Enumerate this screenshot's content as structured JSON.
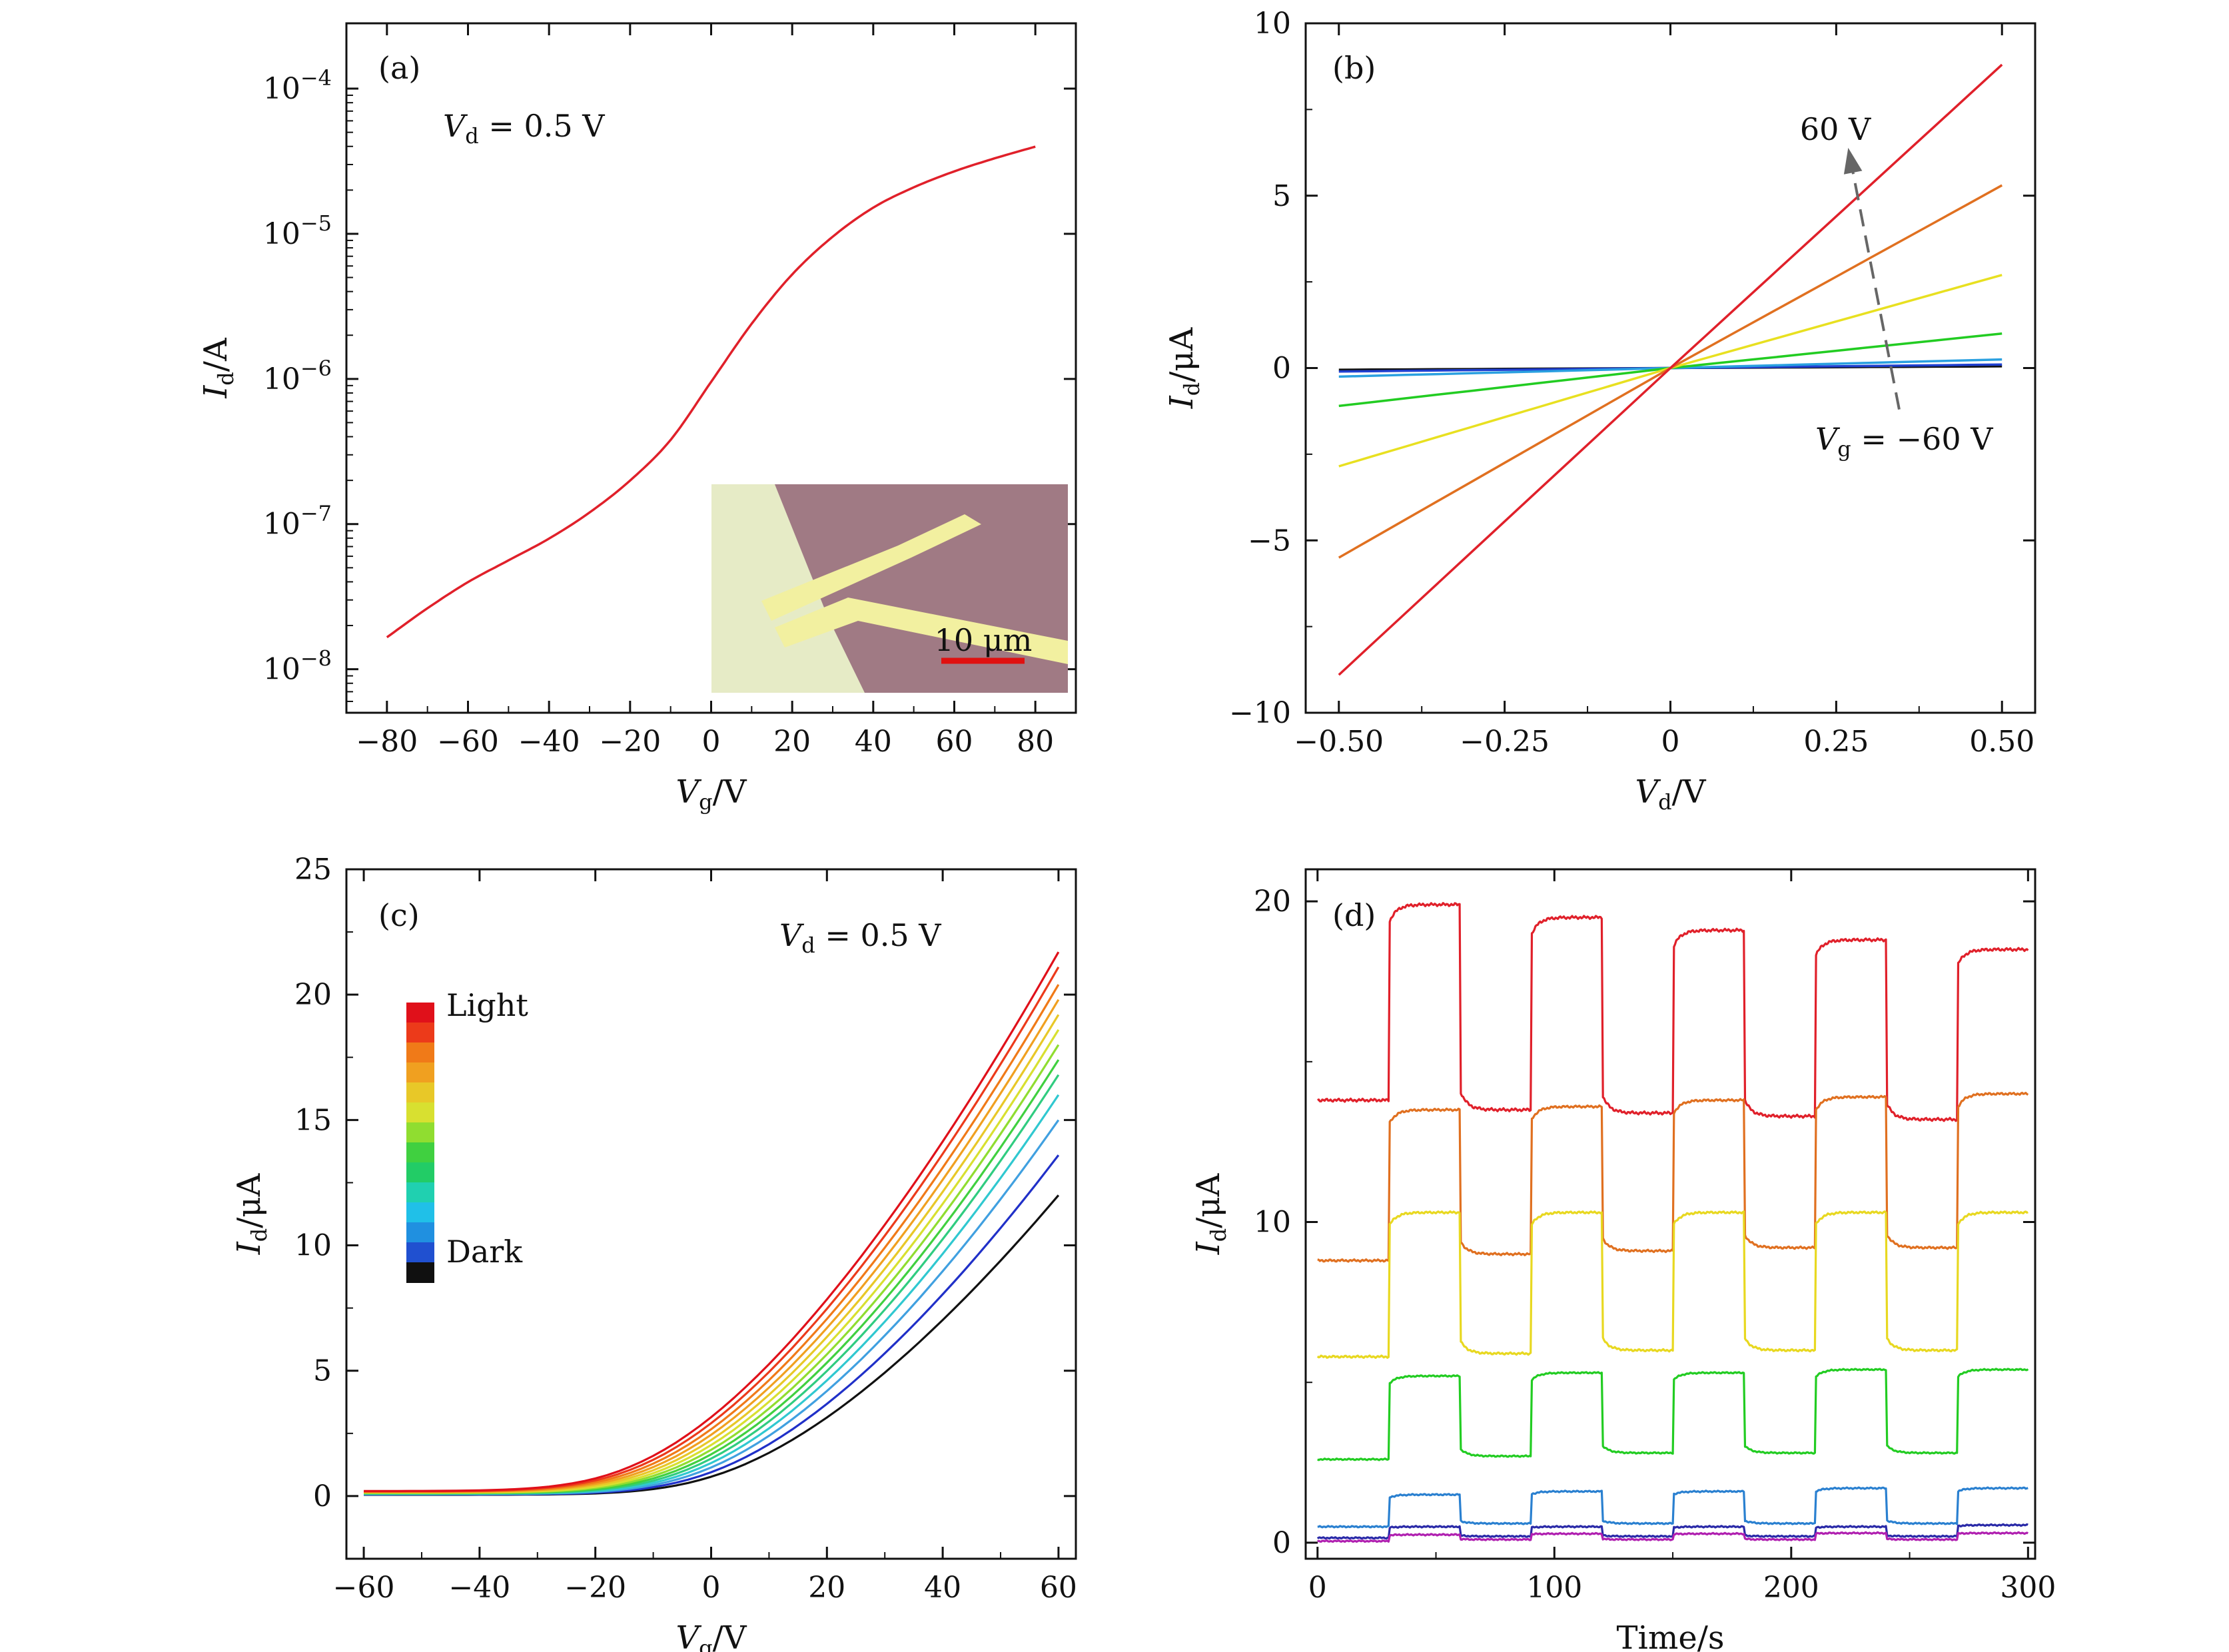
{
  "chart_data": [
    {
      "panel": "(a)",
      "type": "line",
      "yscale": "log",
      "xlabel": {
        "sym": "V",
        "sub": "g",
        "unit": "/V"
      },
      "ylabel": {
        "sym": "I",
        "sub": "d",
        "unit": "/A"
      },
      "xlim": [
        -90,
        90
      ],
      "ylim_exp": [
        -8.3,
        -3.55
      ],
      "xticks": [
        "−80",
        "−60",
        "−40",
        "−20",
        "0",
        "20",
        "40",
        "60",
        "80"
      ],
      "xtick_values": [
        -80,
        -60,
        -40,
        -20,
        0,
        20,
        40,
        60,
        80
      ],
      "yticks": [
        {
          "base": "10",
          "exp": "−4",
          "value": -4
        },
        {
          "base": "10",
          "exp": "−5",
          "value": -5
        },
        {
          "base": "10",
          "exp": "−6",
          "value": -6
        },
        {
          "base": "10",
          "exp": "−7",
          "value": -7
        },
        {
          "base": "10",
          "exp": "−8",
          "value": -8
        }
      ],
      "annotation": {
        "sym": "V",
        "sub": "d",
        "text": " = 0.5 V"
      },
      "inset_scalebar": "10 μm",
      "series": [
        {
          "color": "#e0202a",
          "x": [
            -80,
            -70,
            -60,
            -50,
            -40,
            -30,
            -20,
            -10,
            0,
            10,
            20,
            30,
            40,
            50,
            60,
            70,
            80
          ],
          "log10_y": [
            -7.78,
            -7.58,
            -7.4,
            -7.25,
            -7.1,
            -6.92,
            -6.7,
            -6.42,
            -6.02,
            -5.62,
            -5.28,
            -5.02,
            -4.82,
            -4.68,
            -4.57,
            -4.48,
            -4.4
          ]
        }
      ]
    },
    {
      "panel": "(b)",
      "type": "line",
      "xlabel": {
        "sym": "V",
        "sub": "d",
        "unit": "/V"
      },
      "ylabel": {
        "sym": "I",
        "sub": "d",
        "unit": "/μA"
      },
      "xlim": [
        -0.55,
        0.55
      ],
      "ylim": [
        -10,
        10
      ],
      "xticks": [
        "−0.50",
        "−0.25",
        "0",
        "0.25",
        "0.50"
      ],
      "xtick_values": [
        -0.5,
        -0.25,
        0,
        0.25,
        0.5
      ],
      "yticks": [
        "10",
        "5",
        "0",
        "−5",
        "−10"
      ],
      "ytick_values": [
        10,
        5,
        0,
        -5,
        -10
      ],
      "annotation_top": "60 V",
      "annotation_bottom": {
        "sym": "V",
        "sub": "g",
        "text": " = −60 V"
      },
      "series": [
        {
          "color": "#111111",
          "x": [
            -0.5,
            0.5
          ],
          "y": [
            -0.05,
            0.05
          ]
        },
        {
          "color": "#2040d0",
          "x": [
            -0.5,
            0.5
          ],
          "y": [
            -0.1,
            0.1
          ]
        },
        {
          "color": "#2aa0e0",
          "x": [
            -0.5,
            0.5
          ],
          "y": [
            -0.25,
            0.25
          ]
        },
        {
          "color": "#22cc22",
          "x": [
            -0.5,
            0.5
          ],
          "y": [
            -1.1,
            1.0
          ]
        },
        {
          "color": "#e8e020",
          "x": [
            -0.5,
            0.5
          ],
          "y": [
            -2.85,
            2.7
          ]
        },
        {
          "color": "#e07020",
          "x": [
            -0.5,
            0.5
          ],
          "y": [
            -5.5,
            5.3
          ]
        },
        {
          "color": "#e0202a",
          "x": [
            -0.5,
            0.5
          ],
          "y": [
            -8.9,
            8.8
          ]
        }
      ]
    },
    {
      "panel": "(c)",
      "type": "line",
      "xlabel": {
        "sym": "V",
        "sub": "g",
        "unit": "/V"
      },
      "ylabel": {
        "sym": "I",
        "sub": "d",
        "unit": "/μA"
      },
      "xlim": [
        -63,
        63
      ],
      "ylim": [
        -2.5,
        25
      ],
      "xticks": [
        "−60",
        "−40",
        "−20",
        "0",
        "20",
        "40",
        "60"
      ],
      "xtick_values": [
        -60,
        -40,
        -20,
        0,
        20,
        40,
        60
      ],
      "yticks": [
        "25",
        "20",
        "15",
        "10",
        "5",
        "0"
      ],
      "ytick_values": [
        25,
        20,
        15,
        10,
        5,
        0
      ],
      "annotation": {
        "sym": "V",
        "sub": "d",
        "text": " = 0.5 V"
      },
      "colorbar": {
        "top_label": "Light",
        "bottom_label": "Dark",
        "colors": [
          "#e0101a",
          "#ec3a1a",
          "#f07a18",
          "#f0a020",
          "#e8c828",
          "#d8e030",
          "#90dd30",
          "#40d040",
          "#22cc66",
          "#20d0b0",
          "#20c0e8",
          "#2090e0",
          "#2050d0",
          "#101010"
        ]
      },
      "series_endpoints": [
        12.0,
        13.6,
        15.0,
        16.0,
        16.8,
        17.4,
        18.0,
        18.6,
        19.2,
        19.8,
        20.4,
        21.1,
        21.7
      ],
      "series_colors": [
        "#111111",
        "#2030c8",
        "#40a0e0",
        "#30c8d0",
        "#30cc80",
        "#40d040",
        "#90dd30",
        "#d8e030",
        "#e8c828",
        "#f0a020",
        "#f07a18",
        "#ec3a1a",
        "#e0101a"
      ]
    },
    {
      "panel": "(d)",
      "type": "line",
      "xlabel_text": "Time/s",
      "ylabel": {
        "sym": "I",
        "sub": "d",
        "unit": "/μA"
      },
      "xlim": [
        -5,
        303
      ],
      "ylim": [
        -0.5,
        21
      ],
      "xticks": [
        "0",
        "100",
        "200",
        "300"
      ],
      "xtick_values": [
        0,
        100,
        200,
        300
      ],
      "yticks": [
        "20",
        "10",
        "0"
      ],
      "ytick_values": [
        20,
        10,
        0
      ],
      "period_s": 60,
      "on_times": [
        30,
        90,
        150,
        210,
        270
      ],
      "off_times": [
        60,
        120,
        180,
        240
      ],
      "series": [
        {
          "color": "#e0202a",
          "base": 13.8,
          "on_levels": [
            19.9,
            19.5,
            19.1,
            18.8,
            18.5
          ],
          "off_levels": [
            13.5,
            13.4,
            13.3,
            13.2
          ]
        },
        {
          "color": "#e07020",
          "base": 8.8,
          "on_levels": [
            13.5,
            13.6,
            13.8,
            13.9,
            14.0
          ],
          "off_levels": [
            9.0,
            9.1,
            9.2,
            9.2
          ]
        },
        {
          "color": "#e8d820",
          "base": 5.8,
          "on_levels": [
            10.3,
            10.3,
            10.3,
            10.3,
            10.3
          ],
          "off_levels": [
            5.9,
            6.0,
            6.0,
            6.0
          ]
        },
        {
          "color": "#22cc22",
          "base": 2.6,
          "on_levels": [
            5.2,
            5.3,
            5.3,
            5.4,
            5.4
          ],
          "off_levels": [
            2.7,
            2.8,
            2.8,
            2.8
          ]
        },
        {
          "color": "#2a80d0",
          "base": 0.5,
          "on_levels": [
            1.5,
            1.6,
            1.6,
            1.7,
            1.7
          ],
          "off_levels": [
            0.6,
            0.6,
            0.6,
            0.6
          ]
        },
        {
          "color": "#2a2aa8",
          "base": 0.15,
          "on_levels": [
            0.5,
            0.5,
            0.5,
            0.5,
            0.55
          ],
          "off_levels": [
            0.2,
            0.2,
            0.2,
            0.2
          ]
        },
        {
          "color": "#b020b0",
          "base": 0.05,
          "on_levels": [
            0.25,
            0.28,
            0.28,
            0.3,
            0.3
          ],
          "off_levels": [
            0.1,
            0.1,
            0.1,
            0.1
          ]
        }
      ]
    }
  ]
}
